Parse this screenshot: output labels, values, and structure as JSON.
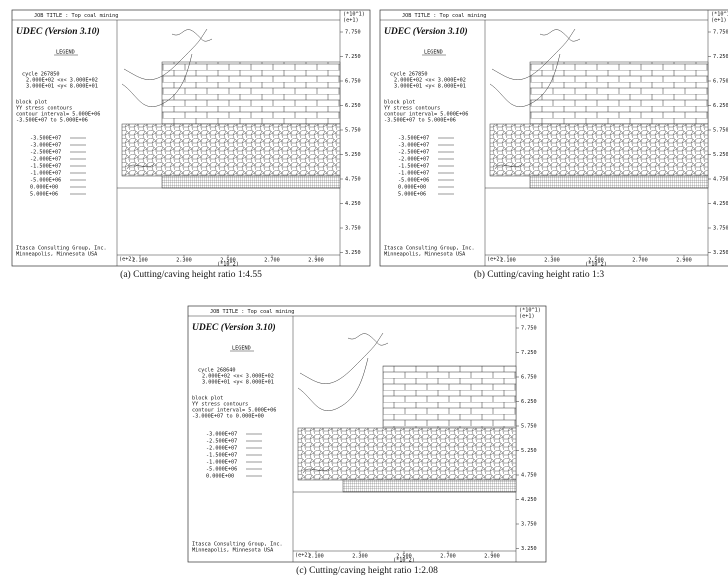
{
  "panels": [
    {
      "job_title": "JOB TITLE :  Top coal mining",
      "version": "UDEC (Version 3.10)",
      "legend_title": "LEGEND",
      "state": [
        "cycle 267850",
        "2.000E+02 <x< 3.000E+02",
        "3.000E+01 <y< 8.000E+01"
      ],
      "plot_info": [
        "block plot",
        "YY stress contours",
        "contour interval= 5.000E+06",
        "-3.500E+07 to  5.000E+06"
      ],
      "levels": [
        "-3.500E+07",
        "-3.000E+07",
        "-2.500E+07",
        "-2.000E+07",
        "-1.500E+07",
        "-1.000E+07",
        "-5.000E+06",
        "0.000E+00",
        "5.000E+06"
      ],
      "company": [
        "Itasca Consulting Group, Inc.",
        "Minneapolis, Minnesota  USA"
      ],
      "y_scale": [
        "(*10^1)",
        "(e+1)"
      ],
      "y_ticks": [
        "7.750",
        "7.250",
        "6.750",
        "6.250",
        "5.750",
        "5.250",
        "4.750",
        "4.250",
        "3.750",
        "3.250"
      ],
      "x_exp": "(e+2)",
      "x_ticks": [
        "2.100",
        "2.300",
        "2.500",
        "2.700",
        "2.900"
      ],
      "x_scale": "(*10^2)",
      "caption": "(a) Cutting/caving height ratio 1:4.55"
    },
    {
      "job_title": "JOB TITLE :  Top coal mining",
      "version": "UDEC (Version 3.10)",
      "legend_title": "LEGEND",
      "state": [
        "cycle 267850",
        "2.000E+02 <x< 3.000E+02",
        "3.000E+01 <y< 8.000E+01"
      ],
      "plot_info": [
        "block plot",
        "YY stress contours",
        "contour interval= 5.000E+06",
        "-3.500E+07 to  5.000E+06"
      ],
      "levels": [
        "-3.500E+07",
        "-3.000E+07",
        "-2.500E+07",
        "-2.000E+07",
        "-1.500E+07",
        "-1.000E+07",
        "-5.000E+06",
        "0.000E+00",
        "5.000E+06"
      ],
      "company": [
        "Itasca Consulting Group, Inc.",
        "Minneapolis, Minnesota  USA"
      ],
      "y_scale": [
        "(*10^1)",
        "(e+1)"
      ],
      "y_ticks": [
        "7.750",
        "7.250",
        "6.750",
        "6.250",
        "5.750",
        "5.250",
        "4.750",
        "4.250",
        "3.750",
        "3.250"
      ],
      "x_exp": "(e+2)",
      "x_ticks": [
        "2.100",
        "2.300",
        "2.500",
        "2.700",
        "2.900"
      ],
      "x_scale": "(*10^2)",
      "caption": "(b) Cutting/caving height ratio 1:3"
    },
    {
      "job_title": "JOB TITLE :  Top coal mining",
      "version": "UDEC (Version 3.10)",
      "legend_title": "LEGEND",
      "state": [
        "cycle 268640",
        "2.000E+02 <x< 3.000E+02",
        "3.000E+01 <y< 8.000E+01"
      ],
      "plot_info": [
        "block plot",
        "YY stress contours",
        "contour interval= 5.000E+06",
        "-3.000E+07 to  0.000E+00"
      ],
      "levels": [
        "-3.000E+07",
        "-2.500E+07",
        "-2.000E+07",
        "-1.500E+07",
        "-1.000E+07",
        "-5.000E+06",
        "0.000E+00"
      ],
      "company": [
        "Itasca Consulting Group, Inc.",
        "Minneapolis, Minnesota  USA"
      ],
      "y_scale": [
        "(*10^1)",
        "(e+1)"
      ],
      "y_ticks": [
        "7.750",
        "7.250",
        "6.750",
        "6.250",
        "5.750",
        "5.250",
        "4.750",
        "4.250",
        "3.750",
        "3.250"
      ],
      "x_exp": "(e+2)",
      "x_ticks": [
        "2.100",
        "2.300",
        "2.500",
        "2.700",
        "2.900"
      ],
      "x_scale": "(*10^2)",
      "caption": "(c) Cutting/caving height ratio 1:2.08"
    }
  ]
}
